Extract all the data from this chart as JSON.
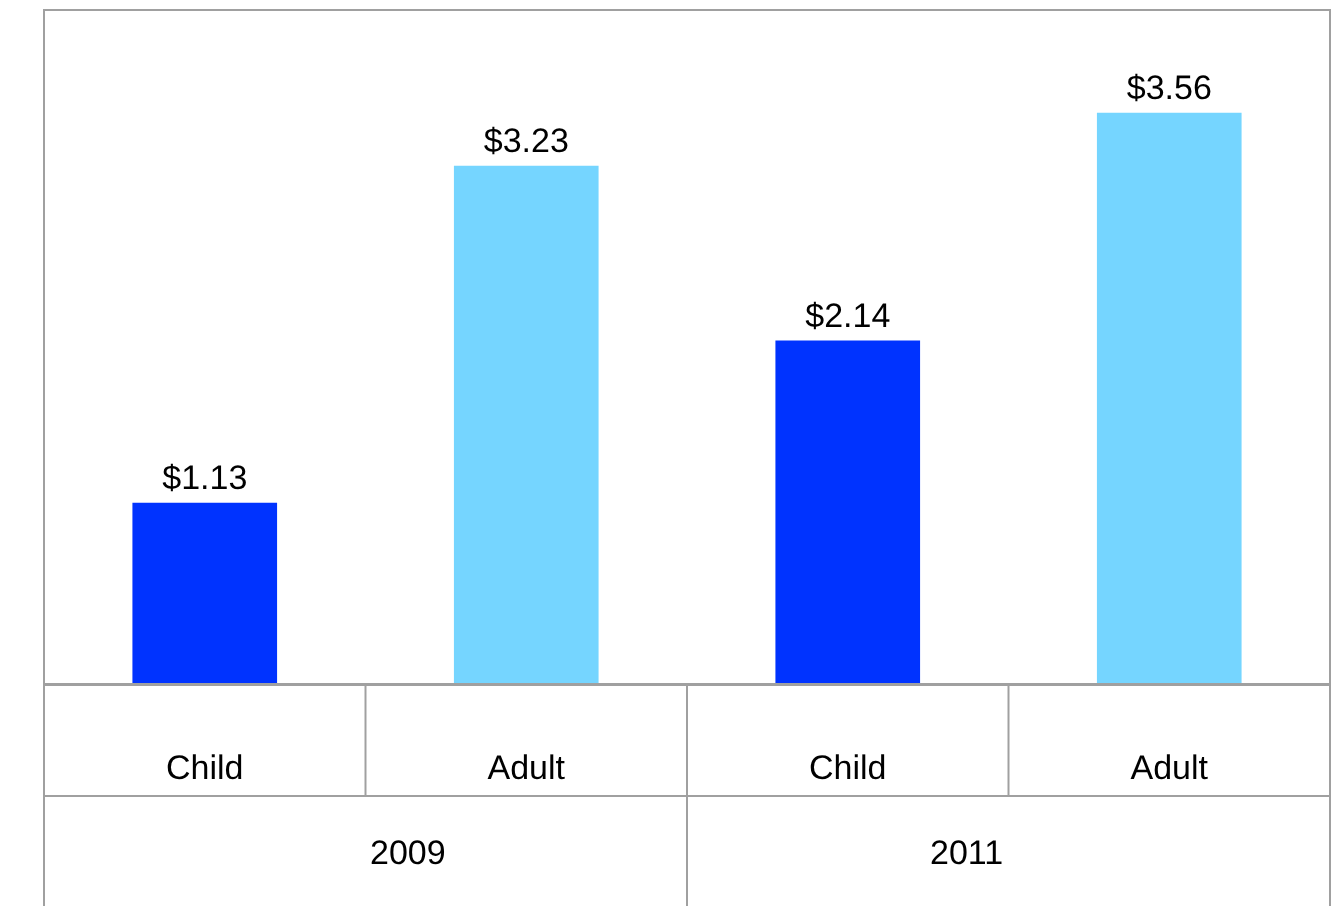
{
  "chart_data": {
    "type": "bar",
    "categories": [
      "Child",
      "Adult",
      "Child",
      "Adult"
    ],
    "values": [
      1.13,
      3.23,
      2.14,
      3.56
    ],
    "colors": [
      "#0033ff",
      "#75d5ff",
      "#0033ff",
      "#75d5ff"
    ],
    "value_labels": [
      "$1.13",
      "$3.23",
      "$2.14",
      "$3.56"
    ],
    "annotations": [
      "2009",
      "2011"
    ],
    "ylim": [
      0,
      4.2
    ],
    "legend": false
  }
}
